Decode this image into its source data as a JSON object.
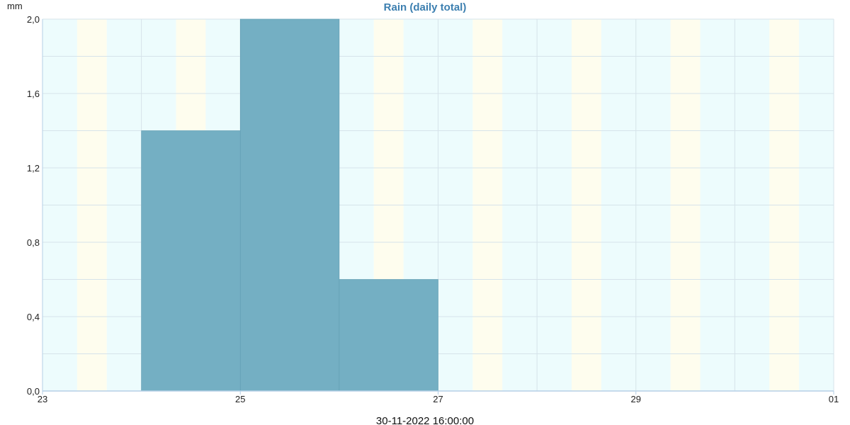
{
  "chart_data": {
    "type": "bar",
    "title": "Rain (daily total)",
    "ylabel": "mm",
    "xlabel": "",
    "ylim": [
      0,
      2.0
    ],
    "y_ticks": [
      "0,0",
      "0,4",
      "0,8",
      "1,2",
      "1,6",
      "2,0"
    ],
    "y_tick_values": [
      0,
      0.4,
      0.8,
      1.2,
      1.6,
      2.0
    ],
    "x_range": [
      "2022-11-23",
      "2022-12-01"
    ],
    "x_ticks": [
      {
        "label": "23",
        "date": "2022-11-23"
      },
      {
        "label": "25",
        "date": "2022-11-25"
      },
      {
        "label": "27",
        "date": "2022-11-27"
      },
      {
        "label": "29",
        "date": "2022-11-29"
      },
      {
        "label": "01",
        "date": "2022-12-01"
      }
    ],
    "bars": [
      {
        "start": "2022-11-24",
        "end": "2022-11-25",
        "value": 1.4
      },
      {
        "start": "2022-11-25",
        "end": "2022-11-26",
        "value": 2.0
      },
      {
        "start": "2022-11-26",
        "end": "2022-11-27",
        "value": 0.6
      }
    ],
    "grid": true,
    "footer": "30-11-2022 16:00:00",
    "colors": {
      "bar": "#74afc3",
      "bar_edge": "#5f9db2",
      "night_band": "#edfcfd",
      "twilight_band": "#fefdee",
      "grid": "#d6e3ea",
      "axis": "#b5cfe6",
      "title": "#3c7fb0"
    }
  }
}
